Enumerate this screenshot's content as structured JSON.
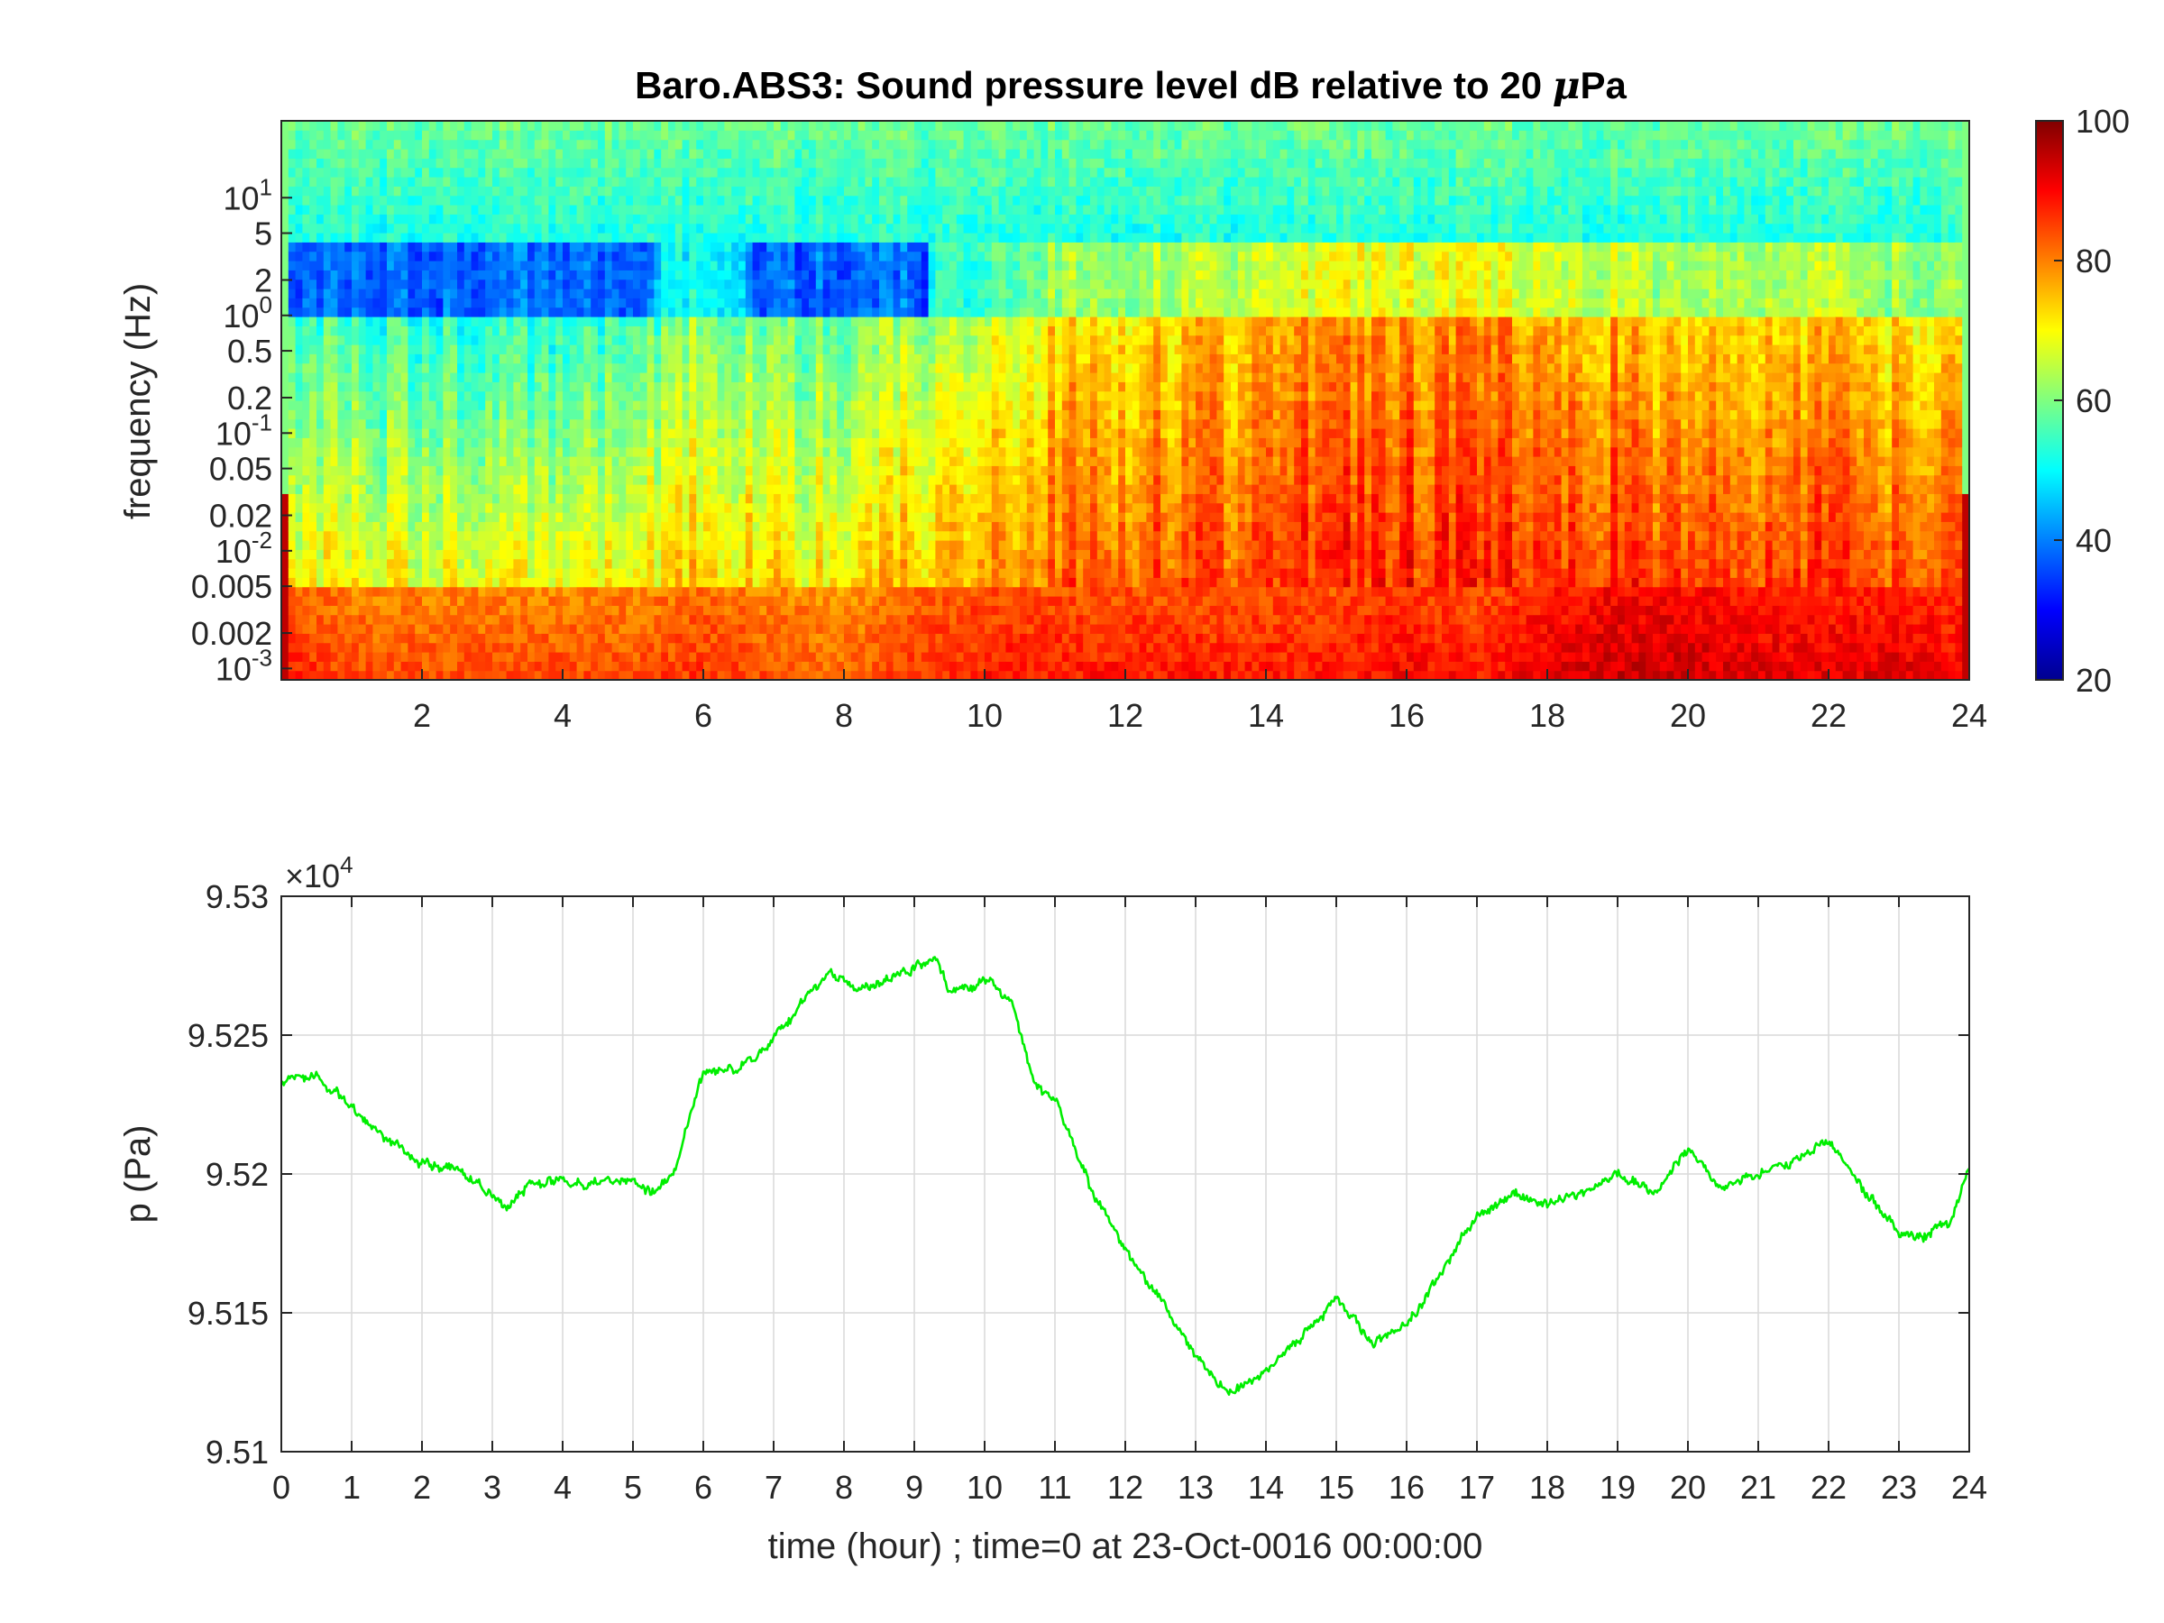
{
  "title": {
    "prefix": "Baro.ABS3: Sound pressure level dB relative to 20 ",
    "mu": "μ",
    "suffix": "Pa"
  },
  "spectrogram": {
    "ylabel": "frequency (Hz)",
    "x_ticks": [
      "2",
      "4",
      "6",
      "8",
      "10",
      "12",
      "14",
      "16",
      "18",
      "20",
      "22",
      "24"
    ],
    "x_tick_values": [
      2,
      4,
      6,
      8,
      10,
      12,
      14,
      16,
      18,
      20,
      22,
      24
    ],
    "xlim": [
      0,
      24
    ],
    "ylim_hz": [
      0.0008,
      45
    ],
    "y_scale": "log",
    "y_ticks": [
      {
        "value": 10,
        "base": "10",
        "exp": "1"
      },
      {
        "value": 5,
        "label": "5"
      },
      {
        "value": 2,
        "label": "2"
      },
      {
        "value": 1,
        "base": "10",
        "exp": "0"
      },
      {
        "value": 0.5,
        "label": "0.5"
      },
      {
        "value": 0.2,
        "label": "0.2"
      },
      {
        "value": 0.1,
        "base": "10",
        "exp": "-1"
      },
      {
        "value": 0.05,
        "label": "0.05"
      },
      {
        "value": 0.02,
        "label": "0.02"
      },
      {
        "value": 0.01,
        "base": "10",
        "exp": "-2"
      },
      {
        "value": 0.005,
        "label": "0.005"
      },
      {
        "value": 0.002,
        "label": "0.002"
      },
      {
        "value": 0.001,
        "base": "10",
        "exp": "-3"
      }
    ],
    "colormap": "jet",
    "clim": [
      20,
      100
    ],
    "colorbar_ticks": [
      "100",
      "80",
      "60",
      "40",
      "20"
    ],
    "colorbar_tick_values": [
      100,
      80,
      60,
      40,
      20
    ]
  },
  "pressure_chart": {
    "ylabel": "p (Pa)",
    "xlabel": "time (hour) ; time=0 at 23-Oct-0016 00:00:00",
    "multiplier_base": "×10",
    "multiplier_exp": "4",
    "y_ticks": [
      "9.53",
      "9.525",
      "9.52",
      "9.515",
      "9.51"
    ],
    "y_tick_values": [
      9.53,
      9.525,
      9.52,
      9.515,
      9.51
    ],
    "x_ticks": [
      "0",
      "1",
      "2",
      "3",
      "4",
      "5",
      "6",
      "7",
      "8",
      "9",
      "10",
      "11",
      "12",
      "13",
      "14",
      "15",
      "16",
      "17",
      "18",
      "19",
      "20",
      "21",
      "22",
      "23",
      "24"
    ],
    "grid": true,
    "line_color": "#00ee00"
  },
  "chart_data": [
    {
      "type": "heatmap",
      "title": "Baro.ABS3: Sound pressure level dB relative to 20 μPa",
      "ylabel": "frequency (Hz)",
      "xlim": [
        0,
        24
      ],
      "ylim": [
        0.0008,
        45
      ],
      "y_scale": "log",
      "colorbar_range": [
        20,
        100
      ],
      "time_profile_hours": [
        0,
        1,
        2,
        3,
        4,
        5,
        6,
        7,
        8,
        9,
        10,
        11,
        12,
        13,
        14,
        15,
        16,
        17,
        18,
        19,
        20,
        21,
        22,
        23,
        24
      ],
      "midband_level_db": [
        64,
        62,
        62,
        60,
        60,
        64,
        70,
        66,
        66,
        70,
        72,
        80,
        80,
        82,
        84,
        86,
        86,
        86,
        84,
        84,
        80,
        82,
        82,
        80,
        78
      ],
      "lowband_level_db": [
        88,
        84,
        84,
        84,
        84,
        84,
        86,
        84,
        82,
        86,
        88,
        88,
        88,
        88,
        88,
        88,
        90,
        88,
        92,
        94,
        94,
        92,
        92,
        92,
        90
      ],
      "high_freq_level_db": 52,
      "band_1to2hz_level_db_early": 38
    },
    {
      "type": "line",
      "xlabel": "time (hour) ; time=0 at 23-Oct-0016 00:00:00",
      "ylabel": "p (Pa)",
      "y_multiplier": 10000,
      "xlim": [
        0,
        24
      ],
      "ylim": [
        9.51,
        9.53
      ],
      "grid": true,
      "series": [
        {
          "x": [
            0,
            0.5,
            1,
            1.5,
            2,
            2.5,
            3,
            3.25,
            3.5,
            4,
            4.5,
            5,
            5.25,
            5.6,
            6,
            6.5,
            7,
            7.5,
            7.8,
            8.3,
            9,
            9.3,
            9.5,
            10,
            10.4,
            10.7,
            11,
            11.5,
            12,
            12.5,
            13,
            13.5,
            14,
            14.5,
            15,
            15.5,
            16,
            16.5,
            17,
            17.5,
            18,
            18.5,
            19,
            19.5,
            20,
            20.5,
            21,
            21.5,
            22,
            22.5,
            23,
            23.4,
            23.75,
            24
          ],
          "y": [
            9.5233,
            9.5234,
            9.5225,
            9.5212,
            9.5204,
            9.5203,
            9.5193,
            9.519,
            9.5195,
            9.5198,
            9.5196,
            9.5198,
            9.5193,
            9.5202,
            9.5237,
            9.5237,
            9.5248,
            9.5265,
            9.5273,
            9.5266,
            9.5274,
            9.5277,
            9.5265,
            9.527,
            9.5262,
            9.5232,
            9.5228,
            9.5195,
            9.5172,
            9.5155,
            9.5135,
            9.512,
            9.513,
            9.514,
            9.5155,
            9.514,
            9.5145,
            9.5165,
            9.5185,
            9.5193,
            9.5188,
            9.5193,
            9.52,
            9.5193,
            9.521,
            9.5195,
            9.52,
            9.5205,
            9.5212,
            9.5195,
            9.518,
            9.5178,
            9.5183,
            9.5202
          ]
        }
      ]
    }
  ]
}
